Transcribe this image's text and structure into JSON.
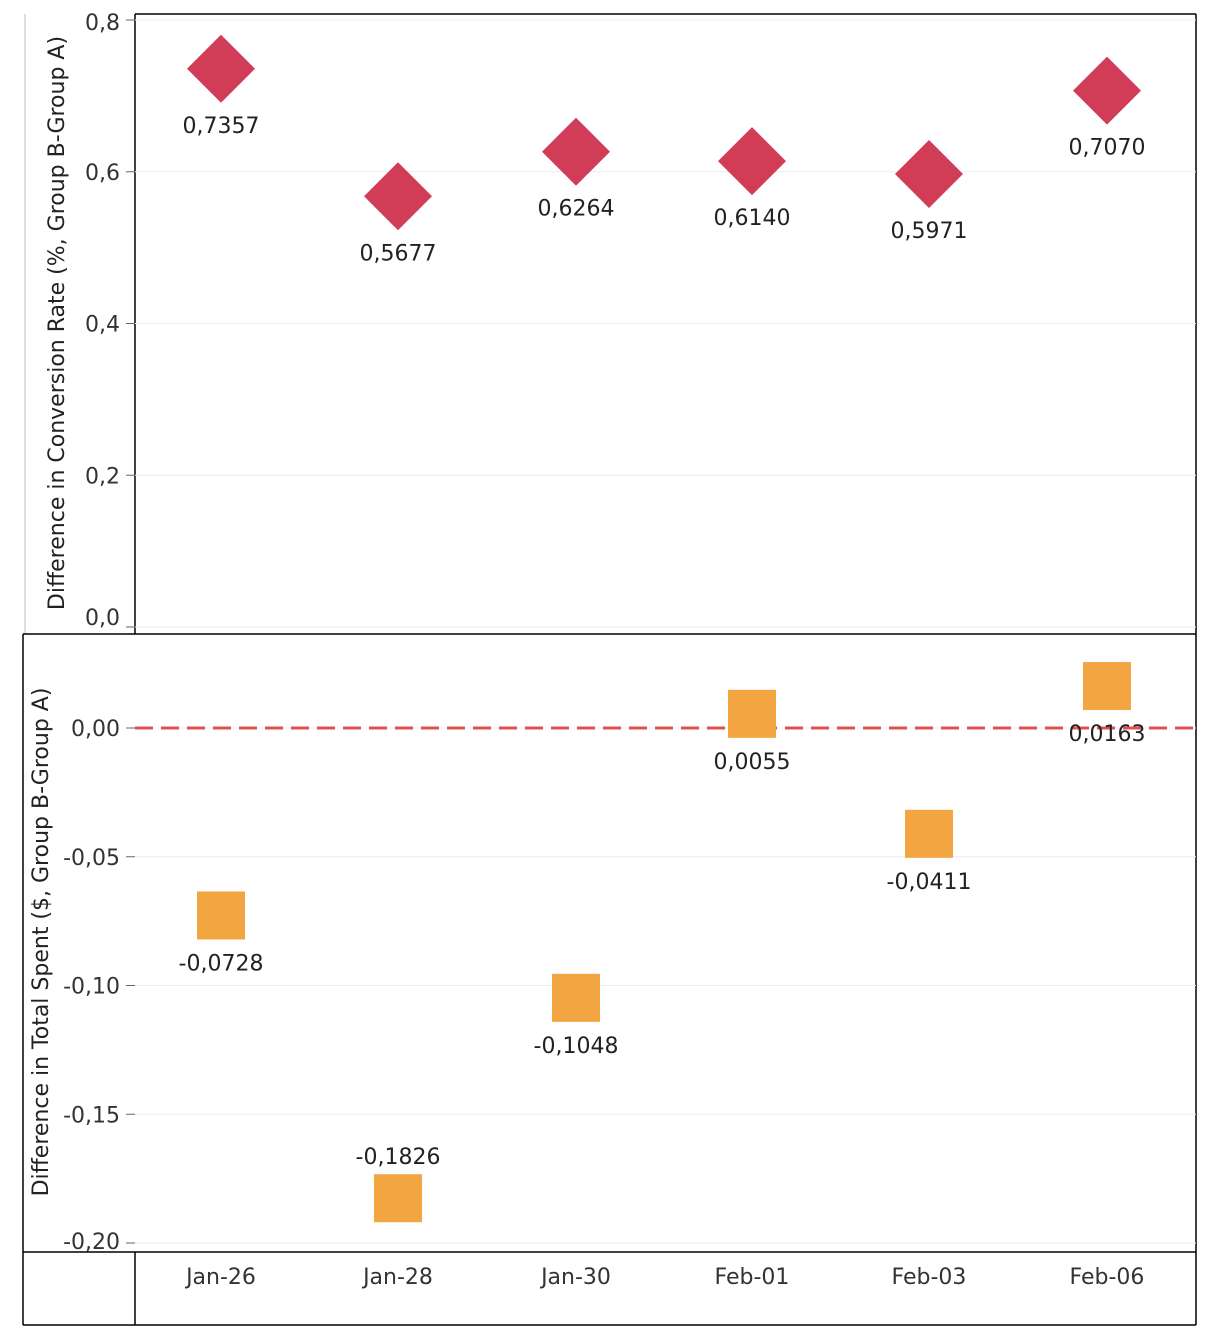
{
  "chart_data": [
    {
      "type": "scatter",
      "marker": "diamond",
      "color": "#d13d56",
      "ylabel": "Difference in Conversion Rate (%, Group B-Group A)",
      "ylim": [
        0.0,
        0.8
      ],
      "yticks": [
        "0,0",
        "0,2",
        "0,4",
        "0,6",
        "0,8"
      ],
      "ytick_values": [
        0.0,
        0.2,
        0.4,
        0.6,
        0.8
      ],
      "categories": [
        "Jan-26",
        "Jan-28",
        "Jan-30",
        "Feb-01",
        "Feb-03",
        "Feb-06"
      ],
      "values": [
        0.7357,
        0.5677,
        0.6264,
        0.614,
        0.5971,
        0.707
      ],
      "labels": [
        "0,7357",
        "0,5677",
        "0,6264",
        "0,6140",
        "0,5971",
        "0,7070"
      ],
      "grid": true
    },
    {
      "type": "scatter",
      "marker": "square",
      "color": "#f2a541",
      "reference_line": {
        "value": 0.0,
        "style": "dashed",
        "color": "#d9534f"
      },
      "ylabel": "Difference in Total Spent ($, Group B-Group A)",
      "ylim": [
        -0.2,
        0.03
      ],
      "yticks": [
        "0,00",
        "-0,05",
        "-0,10",
        "-0,15",
        "-0,20"
      ],
      "ytick_values": [
        0.0,
        -0.05,
        -0.1,
        -0.15,
        -0.2
      ],
      "categories": [
        "Jan-26",
        "Jan-28",
        "Jan-30",
        "Feb-01",
        "Feb-03",
        "Feb-06"
      ],
      "values": [
        -0.0728,
        -0.1826,
        -0.1048,
        0.0055,
        -0.0411,
        0.0163
      ],
      "labels": [
        "-0,0728",
        "-0,1826",
        "-0,1048",
        "0,0055",
        "-0,0411",
        "0,0163"
      ],
      "grid": true
    }
  ],
  "x_axis": {
    "labels": [
      "Jan-26",
      "Jan-28",
      "Jan-30",
      "Feb-01",
      "Feb-03",
      "Feb-06"
    ]
  }
}
